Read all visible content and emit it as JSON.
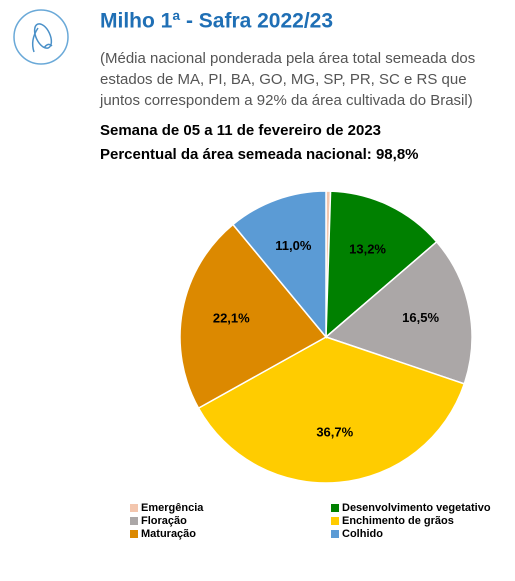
{
  "chart_data": {
    "type": "pie",
    "title": "Milho 1ª - Safra 2022/23",
    "subtitle": [
      "(Média nacional ponderada pela área total semeada dos",
      "estados de MA, PI, BA, GO, MG, SP, PR, SC e RS que",
      "juntos correspondem a 92% da área cultivada do Brasil)"
    ],
    "notes": [
      "Semana de 05 a 11 de fevereiro de 2023",
      "Percentual da área semeada nacional: 98,8%"
    ],
    "categories": [
      "Emergência",
      "Desenvolvimento vegetativo",
      "Floração",
      "Enchimento de grãos",
      "Maturação",
      "Colhido"
    ],
    "values": [
      0.5,
      13.2,
      16.5,
      36.7,
      22.1,
      11.0
    ],
    "value_labels": [
      null,
      "13,2%",
      "16,5%",
      "36,7%",
      "22,1%",
      "11,0%"
    ],
    "colors": [
      "#f3c6ae",
      "#008000",
      "#aba7a7",
      "#ffcc00",
      "#dc8900",
      "#5b9bd5"
    ],
    "legend": "bottom"
  }
}
